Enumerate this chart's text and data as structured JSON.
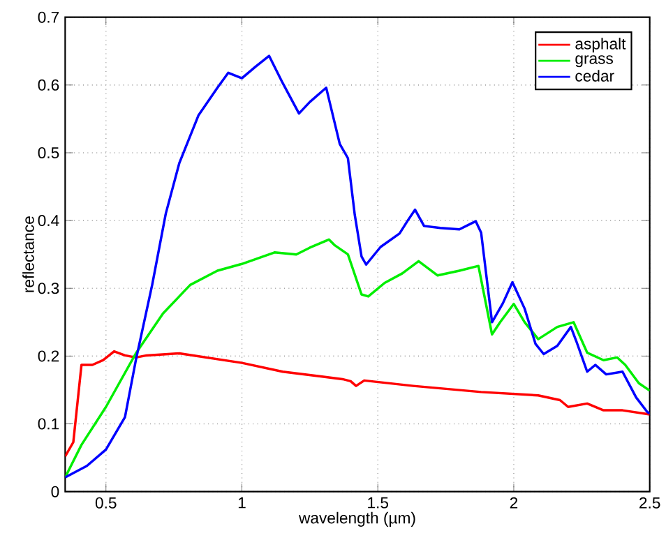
{
  "chart_data": {
    "type": "line",
    "xlabel": "wavelength (µm)",
    "ylabel": "reflectance",
    "xlim": [
      0.35,
      2.5
    ],
    "ylim": [
      0,
      0.7
    ],
    "xticks": [
      0.5,
      1,
      1.5,
      2,
      2.5
    ],
    "yticks": [
      0,
      0.1,
      0.2,
      0.3,
      0.4,
      0.5,
      0.6,
      0.7
    ],
    "grid": true,
    "legend": "top right",
    "marker": "none",
    "line_style": "solid",
    "series": [
      {
        "name": "asphalt",
        "color": "#ff0000",
        "x": [
          0.35,
          0.38,
          0.41,
          0.45,
          0.49,
          0.53,
          0.57,
          0.61,
          0.65,
          0.77,
          1.0,
          1.15,
          1.29,
          1.37,
          1.4,
          1.42,
          1.45,
          1.63,
          1.88,
          2.09,
          2.17,
          2.2,
          2.27,
          2.33,
          2.4,
          2.5
        ],
        "values": [
          0.052,
          0.073,
          0.187,
          0.187,
          0.194,
          0.207,
          0.201,
          0.198,
          0.201,
          0.204,
          0.19,
          0.177,
          0.17,
          0.166,
          0.163,
          0.156,
          0.164,
          0.156,
          0.147,
          0.142,
          0.135,
          0.125,
          0.13,
          0.12,
          0.12,
          0.114
        ]
      },
      {
        "name": "grass",
        "color": "#00ee00",
        "x": [
          0.35,
          0.41,
          0.5,
          0.61,
          0.71,
          0.81,
          0.91,
          1.0,
          1.12,
          1.2,
          1.25,
          1.32,
          1.34,
          1.39,
          1.44,
          1.465,
          1.525,
          1.59,
          1.65,
          1.72,
          1.8,
          1.87,
          1.92,
          1.95,
          2.0,
          2.04,
          2.09,
          2.16,
          2.22,
          2.27,
          2.33,
          2.38,
          2.41,
          2.46,
          2.5
        ],
        "values": [
          0.021,
          0.069,
          0.125,
          0.204,
          0.263,
          0.305,
          0.326,
          0.336,
          0.353,
          0.35,
          0.36,
          0.372,
          0.364,
          0.35,
          0.291,
          0.288,
          0.308,
          0.322,
          0.34,
          0.319,
          0.326,
          0.333,
          0.232,
          0.25,
          0.277,
          0.25,
          0.225,
          0.243,
          0.25,
          0.205,
          0.194,
          0.198,
          0.187,
          0.16,
          0.149
        ]
      },
      {
        "name": "cedar",
        "color": "#0000ff",
        "x": [
          0.35,
          0.43,
          0.5,
          0.57,
          0.61,
          0.67,
          0.72,
          0.77,
          0.84,
          0.91,
          0.95,
          1.0,
          1.05,
          1.1,
          1.15,
          1.21,
          1.25,
          1.31,
          1.36,
          1.39,
          1.415,
          1.44,
          1.457,
          1.51,
          1.58,
          1.61,
          1.637,
          1.67,
          1.73,
          1.8,
          1.86,
          1.88,
          1.92,
          1.96,
          1.995,
          2.04,
          2.08,
          2.11,
          2.16,
          2.21,
          2.23,
          2.27,
          2.3,
          2.34,
          2.4,
          2.45,
          2.49,
          2.5
        ],
        "values": [
          0.021,
          0.038,
          0.062,
          0.11,
          0.194,
          0.305,
          0.41,
          0.485,
          0.555,
          0.596,
          0.618,
          0.61,
          0.627,
          0.643,
          0.603,
          0.558,
          0.575,
          0.596,
          0.513,
          0.492,
          0.409,
          0.347,
          0.335,
          0.361,
          0.381,
          0.4,
          0.416,
          0.392,
          0.389,
          0.387,
          0.399,
          0.382,
          0.25,
          0.278,
          0.309,
          0.27,
          0.218,
          0.203,
          0.215,
          0.243,
          0.222,
          0.177,
          0.187,
          0.173,
          0.177,
          0.139,
          0.118,
          0.115
        ]
      }
    ]
  }
}
